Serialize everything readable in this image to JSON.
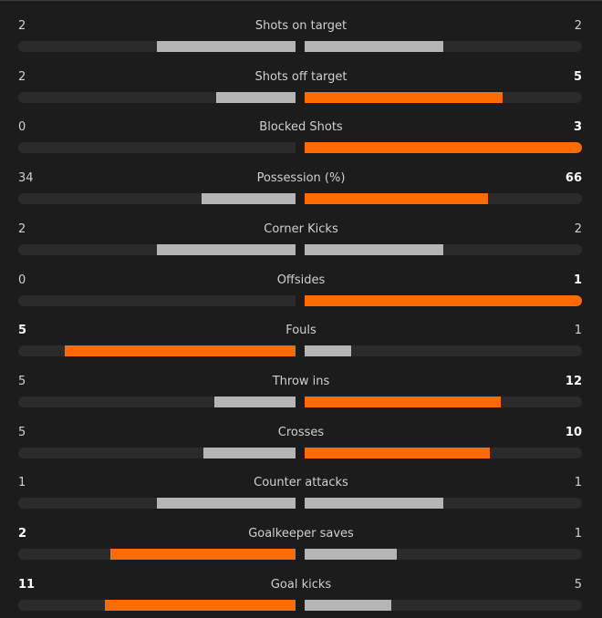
{
  "stats": [
    {
      "label": "Shots on target",
      "home": 2,
      "away": 2
    },
    {
      "label": "Shots off target",
      "home": 2,
      "away": 5
    },
    {
      "label": "Blocked Shots",
      "home": 0,
      "away": 3
    },
    {
      "label": "Possession (%)",
      "home": 34,
      "away": 66
    },
    {
      "label": "Corner Kicks",
      "home": 2,
      "away": 2
    },
    {
      "label": "Offsides",
      "home": 0,
      "away": 1
    },
    {
      "label": "Fouls",
      "home": 5,
      "away": 1
    },
    {
      "label": "Throw ins",
      "home": 5,
      "away": 12
    },
    {
      "label": "Crosses",
      "home": 5,
      "away": 10
    },
    {
      "label": "Counter attacks",
      "home": 1,
      "away": 1
    },
    {
      "label": "Goalkeeper saves",
      "home": 2,
      "away": 1
    },
    {
      "label": "Goal kicks",
      "home": 11,
      "away": 5
    }
  ]
}
